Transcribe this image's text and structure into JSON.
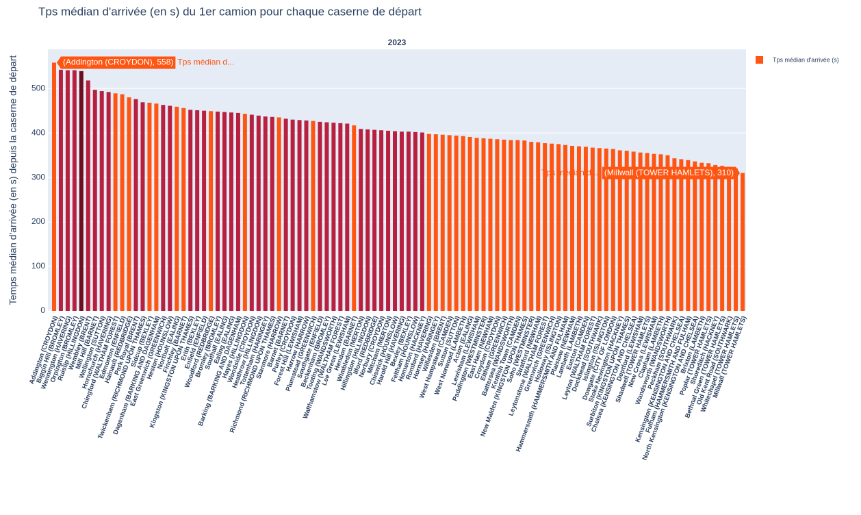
{
  "chart_data": {
    "type": "bar",
    "title": "Tps médian d'arrivée (en s) du 1er camion pour chaque caserne de départ",
    "subplot_title": "2023",
    "y_label": "Temps médian d'arrivée (en s) depuis la caserne de départ",
    "ylim": [
      0,
      588
    ],
    "yticks": [
      0,
      100,
      200,
      300,
      400,
      500
    ],
    "grid": true,
    "legend": "top-right",
    "categories": [
      "Addington (CROYDON)",
      "Biggin Hill (BROMLEY)",
      "Wennington (HAVERING)",
      "Orpington (BROMLEY)",
      "Ruislip (HILLINGDON)",
      "Wembley (BRENT)",
      "Mill Hill (BARNET)",
      "Wallington (SUTTON)",
      "Hornchurch (HAVERING)",
      "Chingford (WALTHAM FOREST)",
      "Edmonton (ENFIELD)",
      "Hainault (REDBRIDGE)",
      "Park Royal (BRENT)",
      "Twickenham (RICHMOND UPON THAMES)",
      "Sidcup (BEXLEY)",
      "Dagenham (BARKING AND DAGENHAM)",
      "East Greenwich (GREENWICH)",
      "Heston (HOUNSLOW)",
      "Northolt (EALING)",
      "Finchley (BARNET)",
      "Kingston (KINGSTON UPON THAMES)",
      "Erith (BEXLEY)",
      "Enfield (ENFIELD)",
      "Woodford (REDBRIDGE)",
      "Bromley (BROMLEY)",
      "Southall (EALING)",
      "Ealing (EALING)",
      "Barking (BARKING AND DAGENHAM)",
      "Hayes (HILLINGDON)",
      "Woodside (CROYDON)",
      "Heathrow (HILLINGDON)",
      "Tottenham (HARINGEY)",
      "Richmond (RICHMOND UPON THAMES)",
      "Stanmore (HARROW)",
      "Barnet (BARNET)",
      "Purley (CROYDON)",
      "Forest Hill (LEWISHAM)",
      "Harrow (HARROW)",
      "Plumstead (GREENWICH)",
      "Southgate (ENFIELD)",
      "Beckenham (BROMLEY)",
      "Tooting (WANDSWORTH)",
      "Walthamstow (WALTHAM FOREST)",
      "Lee Green (LEWISHAM)",
      "Hendon (BARNET)",
      "Wimbledon (MERTON)",
      "Hillingdon (HILLINGDON)",
      "Ilford (REDBRIDGE)",
      "Norbury (CROYDON)",
      "Mitcham (MERTON)",
      "Chiswick (HOUNSLOW)",
      "Harold Hill (HAVERING)",
      "Bexley (BEXLEY)",
      "Feltham (HOUNSLOW)",
      "Homerton (HACKNEY)",
      "Romford (HAVERING)",
      "Hornsey (HARINGEY)",
      "Willesden (BRENT)",
      "West Hampstead (CAMDEN)",
      "Sutton (SUTTON)",
      "West Norwood (LAMBETH)",
      "Acton (EALING)",
      "Lewisham (LEWISHAM)",
      "Paddington (WESTMINSTER)",
      "East Ham (NEWHAM)",
      "Croydon (CROYDON)",
      "Eltham (GREENWICH)",
      "Battersea (WANDSWORTH)",
      "Kentish Town (CAMDEN)",
      "New Malden (KINGSTON UPON THAMES)",
      "Soho (WESTMINSTER)",
      "Stratford (NEWHAM)",
      "Leytonstone (WALTHAM FOREST)",
      "Greenwich (GREENWICH)",
      "Holloway (ISLINGTON)",
      "Hammersmith (HAMMERSMITH AND FULHAM)",
      "Plaistow (NEWHAM)",
      "Lambeth (LAMBETH)",
      "Euston (CAMDEN)",
      "Leyton (WALTHAM FOREST)",
      "Dockhead (SOUTHWARK)",
      "Islington (ISLINGTON)",
      "Dowgate (CITY OF LONDON)",
      "Stoke Newington (HACKNEY)",
      "Surbiton (KINGSTON UPON THAMES)",
      "Chelsea (KENSINGTON AND CHELSEA)",
      "Deptford (LEWISHAM)",
      "Shadwell (TOWER HAMLETS)",
      "New Cross (LEWISHAM)",
      "Clapham (LAMBETH)",
      "Wandsworth (WANDSWORTH)",
      "Peckham (SOUTHWARK)",
      "Kensington (KENSINGTON AND CHELSEA)",
      "Fulham (HAMMERSMITH AND FULHAM)",
      "North Kensington (KENSINGTON AND CHELSEA)",
      "Brixton (LAMBETH)",
      "Poplar (TOWER HAMLETS)",
      "Shoreditch (HACKNEY)",
      "Bethnal Green (TOWER HAMLETS)",
      "Old Kent Road (SOUTHWARK)",
      "Whitechapel (TOWER HAMLETS)",
      "Millwall (TOWER HAMLETS)"
    ],
    "series": [
      {
        "name": "Tps médian d'arrivée (s)",
        "color": "#ff5512",
        "values": [
          558,
          542,
          541,
          541,
          539,
          518,
          497,
          494,
          492,
          489,
          487,
          480,
          476,
          469,
          468,
          466,
          463,
          461,
          459,
          456,
          452,
          451,
          450,
          449,
          448,
          447,
          446,
          445,
          443,
          441,
          439,
          437,
          436,
          435,
          432,
          430,
          429,
          428,
          427,
          425,
          424,
          423,
          422,
          421,
          417,
          409,
          408,
          407,
          406,
          405,
          404,
          403,
          403,
          402,
          401,
          398,
          397,
          396,
          395,
          394,
          393,
          391,
          389,
          388,
          387,
          386,
          385,
          384,
          384,
          383,
          380,
          379,
          377,
          376,
          375,
          373,
          371,
          370,
          369,
          367,
          366,
          365,
          364,
          361,
          360,
          358,
          356,
          355,
          353,
          352,
          350,
          343,
          341,
          339,
          336,
          333,
          332,
          328,
          326,
          324,
          320,
          310
        ],
        "colors": [
          "#ff5512",
          "#b8203f",
          "#b8203f",
          "#b8203f",
          "#6d0d1f",
          "#b8203f",
          "#b8203f",
          "#b8203f",
          "#b8203f",
          "#ff5512",
          "#ff5512",
          "#ff5512",
          "#b8203f",
          "#b8203f",
          "#ff5512",
          "#ff5512",
          "#b8203f",
          "#b8203f",
          "#ff5512",
          "#ff5512",
          "#b8203f",
          "#b8203f",
          "#b8203f",
          "#ff5512",
          "#b8203f",
          "#b8203f",
          "#b8203f",
          "#b8203f",
          "#ff5512",
          "#b8203f",
          "#b8203f",
          "#b8203f",
          "#b8203f",
          "#ff5512",
          "#b8203f",
          "#b8203f",
          "#b8203f",
          "#b8203f",
          "#ff5512",
          "#b8203f",
          "#b8203f",
          "#b8203f",
          "#b8203f",
          "#b8203f",
          "#ff5512",
          "#b8203f",
          "#b8203f",
          "#b8203f",
          "#b8203f",
          "#b8203f",
          "#b8203f",
          "#b8203f",
          "#b8203f",
          "#b8203f",
          "#b8203f",
          "#ff5512",
          "#ff5512",
          "#ff5512",
          "#ff5512",
          "#ff5512",
          "#ff5512",
          "#ff5512",
          "#ff5512",
          "#ff5512",
          "#ff5512",
          "#ff5512",
          "#ff5512",
          "#ff5512",
          "#ff5512",
          "#ff5512",
          "#ff5512",
          "#ff5512",
          "#ff5512",
          "#ff5512",
          "#ff5512",
          "#ff5512",
          "#ff5512",
          "#ff5512",
          "#ff5512",
          "#ff5512",
          "#ff5512",
          "#ff5512",
          "#ff5512",
          "#ff5512",
          "#ff5512",
          "#ff5512",
          "#ff5512",
          "#ff5512",
          "#ff5512",
          "#ff5512",
          "#ff5512",
          "#ff5512",
          "#ff5512",
          "#ff5512",
          "#ff5512",
          "#ff5512",
          "#ff5512",
          "#ff5512",
          "#ff5512",
          "#ff5512",
          "#ff5512",
          "#ff5512"
        ]
      }
    ],
    "hover_labels": [
      {
        "text": "(Addington (CROYDON), 558)",
        "name": "Tps médian d..."
      },
      {
        "text": "(Millwall (TOWER HAMLETS), 310)",
        "name": "Tps médian d..."
      }
    ]
  }
}
